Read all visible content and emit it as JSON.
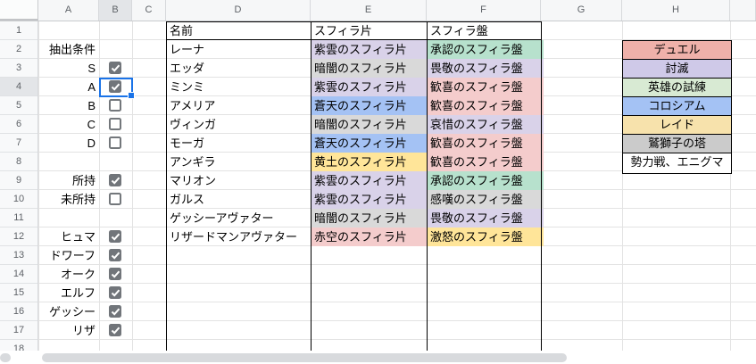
{
  "app": {
    "kind": "spreadsheet-grid"
  },
  "column_headers": [
    "A",
    "B",
    "C",
    "D",
    "E",
    "F",
    "G",
    "H"
  ],
  "row_numbers": [
    "1",
    "2",
    "3",
    "4",
    "5",
    "6",
    "7",
    "8",
    "9",
    "10",
    "11",
    "12",
    "13",
    "14",
    "15",
    "16",
    "17",
    "18"
  ],
  "selection": {
    "column": "B",
    "row": 4,
    "accent_color": "#1a73e8"
  },
  "filter_panel": {
    "title": {
      "row": 2,
      "label": "抽出条件"
    },
    "checkbox_rows": [
      {
        "row": 3,
        "label": "S",
        "checked": true
      },
      {
        "row": 4,
        "label": "A",
        "checked": true
      },
      {
        "row": 5,
        "label": "B",
        "checked": false
      },
      {
        "row": 6,
        "label": "C",
        "checked": false
      },
      {
        "row": 7,
        "label": "D",
        "checked": false
      },
      {
        "row": 9,
        "label": "所持",
        "checked": true
      },
      {
        "row": 10,
        "label": "未所持",
        "checked": false
      },
      {
        "row": 12,
        "label": "ヒュマ",
        "checked": true
      },
      {
        "row": 13,
        "label": "ドワーフ",
        "checked": true
      },
      {
        "row": 14,
        "label": "オーク",
        "checked": true
      },
      {
        "row": 15,
        "label": "エルフ",
        "checked": true
      },
      {
        "row": 16,
        "label": "ゲッシー",
        "checked": true
      },
      {
        "row": 17,
        "label": "リザ",
        "checked": true
      }
    ]
  },
  "table": {
    "headers": {
      "name": "名前",
      "shard": "スフィラ片",
      "board": "スフィラ盤"
    },
    "rows": [
      {
        "row": 2,
        "name": "レーナ",
        "shard": "紫雲のスフィラ片",
        "shard_bg": "#d9d2e9",
        "board": "承認のスフィラ盤",
        "board_bg": "#b7e1cd"
      },
      {
        "row": 3,
        "name": "エッダ",
        "shard": "暗闇のスフィラ片",
        "shard_bg": "#d9d9d9",
        "board": "畏敬のスフィラ盤",
        "board_bg": "#d9d2e9"
      },
      {
        "row": 4,
        "name": "ミンミ",
        "shard": "紫雲のスフィラ片",
        "shard_bg": "#d9d2e9",
        "board": "歓喜のスフィラ盤",
        "board_bg": "#f4cccc"
      },
      {
        "row": 5,
        "name": "アメリア",
        "shard": "蒼天のスフィラ片",
        "shard_bg": "#a4c2f4",
        "board": "歓喜のスフィラ盤",
        "board_bg": "#f4cccc"
      },
      {
        "row": 6,
        "name": "ヴィンガ",
        "shard": "暗闇のスフィラ片",
        "shard_bg": "#d9d9d9",
        "board": "哀惜のスフィラ盤",
        "board_bg": "#d9d2e9"
      },
      {
        "row": 7,
        "name": "モーガ",
        "shard": "蒼天のスフィラ片",
        "shard_bg": "#a4c2f4",
        "board": "歓喜のスフィラ盤",
        "board_bg": "#f4cccc"
      },
      {
        "row": 8,
        "name": "アンギラ",
        "shard": "黄土のスフィラ片",
        "shard_bg": "#ffe599",
        "board": "歓喜のスフィラ盤",
        "board_bg": "#f4cccc"
      },
      {
        "row": 9,
        "name": "マリオン",
        "shard": "紫雲のスフィラ片",
        "shard_bg": "#d9d2e9",
        "board": "承認のスフィラ盤",
        "board_bg": "#b7e1cd"
      },
      {
        "row": 10,
        "name": "ガルス",
        "shard": "紫雲のスフィラ片",
        "shard_bg": "#d9d2e9",
        "board": "感嘆のスフィラ盤",
        "board_bg": "#d9d9d9"
      },
      {
        "row": 11,
        "name": "ゲッシーアヴァター",
        "shard": "暗闇のスフィラ片",
        "shard_bg": "#d9d9d9",
        "board": "畏敬のスフィラ盤",
        "board_bg": "#d9d2e9"
      },
      {
        "row": 12,
        "name": "リザードマンアヴァター",
        "shard": "赤空のスフィラ片",
        "shard_bg": "#f4cccc",
        "board": "激怒のスフィラ盤",
        "board_bg": "#ffe599"
      }
    ]
  },
  "legend": [
    {
      "row": 2,
      "label": "デュエル",
      "bg": "#efb1aa"
    },
    {
      "row": 3,
      "label": "討滅",
      "bg": "#cfc9e8"
    },
    {
      "row": 4,
      "label": "英雄の試練",
      "bg": "#d8ead3"
    },
    {
      "row": 5,
      "label": "コロシアム",
      "bg": "#a4c2f4"
    },
    {
      "row": 6,
      "label": "レイド",
      "bg": "#f7e2ac"
    },
    {
      "row": 7,
      "label": "鷲獅子の塔",
      "bg": "#cbcbcb"
    },
    {
      "row": 8,
      "label": "勢力戦、エニグマ",
      "bg": "#ffffff"
    }
  ]
}
